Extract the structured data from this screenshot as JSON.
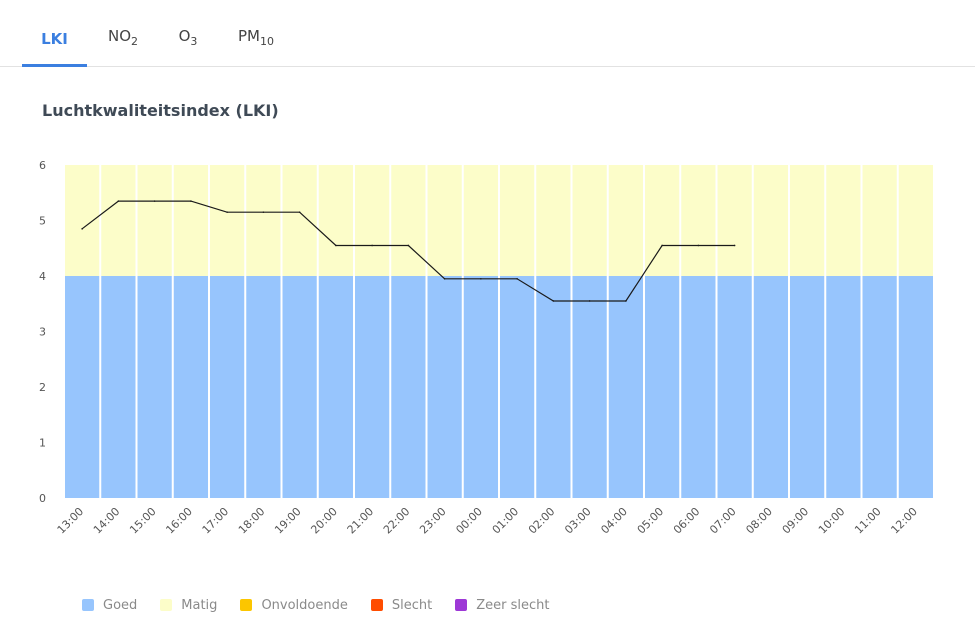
{
  "tabs": [
    {
      "label": "LKI",
      "sub": "",
      "active": true
    },
    {
      "label": "NO",
      "sub": "2",
      "active": false
    },
    {
      "label": "O",
      "sub": "3",
      "active": false
    },
    {
      "label": "PM",
      "sub": "10",
      "active": false
    }
  ],
  "chart_title": "Luchtkwaliteitsindex (LKI)",
  "colors": {
    "goed": "#97c5fd",
    "matig": "#fcfdc9",
    "onvoldoende": "#fcc600",
    "slecht": "#ff4d00",
    "zeer_slecht": "#9d38d6",
    "line": "#1a1a1a",
    "tab_active": "#3b7fe0"
  },
  "legend": [
    {
      "label": "Goed",
      "color": "#97c5fd"
    },
    {
      "label": "Matig",
      "color": "#fcfdc9"
    },
    {
      "label": "Onvoldoende",
      "color": "#fcc600"
    },
    {
      "label": "Slecht",
      "color": "#ff4d00"
    },
    {
      "label": "Zeer slecht",
      "color": "#9d38d6"
    }
  ],
  "chart_data": {
    "type": "line",
    "title": "Luchtkwaliteitsindex (LKI)",
    "x": [
      "13:00",
      "14:00",
      "15:00",
      "16:00",
      "17:00",
      "18:00",
      "19:00",
      "20:00",
      "21:00",
      "22:00",
      "23:00",
      "00:00",
      "01:00",
      "02:00",
      "03:00",
      "04:00",
      "05:00",
      "06:00",
      "07:00",
      "08:00",
      "09:00",
      "10:00",
      "11:00",
      "12:00"
    ],
    "series": [
      {
        "values": [
          4.85,
          5.35,
          5.35,
          5.35,
          5.15,
          5.15,
          5.15,
          4.55,
          4.55,
          4.55,
          3.95,
          3.95,
          3.95,
          3.55,
          3.55,
          3.55,
          4.55,
          4.55,
          4.55,
          null,
          null,
          null,
          null,
          null
        ]
      }
    ],
    "bands": [
      {
        "label": "Goed",
        "from": 0,
        "to": 4
      },
      {
        "label": "Matig",
        "from": 4,
        "to": 6
      }
    ],
    "ylim": [
      0,
      6
    ],
    "yticks": [
      0,
      1,
      2,
      3,
      4,
      5,
      6
    ],
    "grid": false,
    "legend_position": "bottom-left"
  }
}
